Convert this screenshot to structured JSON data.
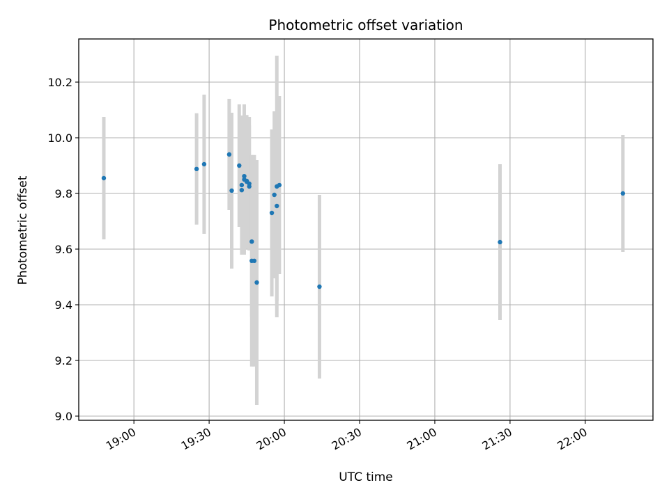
{
  "chart_data": {
    "type": "scatter",
    "title": "Photometric offset variation",
    "xlabel": "UTC time",
    "ylabel": "Photometric offset",
    "x_unit": "UTC time (HH:MM)",
    "xlim": [
      "18:38",
      "22:27"
    ],
    "ylim": [
      8.985,
      10.355
    ],
    "grid": true,
    "x_ticks": [
      "19:00",
      "19:30",
      "20:00",
      "20:30",
      "21:00",
      "21:30",
      "22:00"
    ],
    "y_ticks": [
      9.0,
      9.2,
      9.4,
      9.6,
      9.8,
      10.0,
      10.2
    ],
    "marker_color": "#1f77b4",
    "errorbar_color": "#d3d3d3",
    "series": [
      {
        "points": [
          {
            "x": "18:48",
            "y": 9.855,
            "err": 0.22
          },
          {
            "x": "19:25",
            "y": 9.888,
            "err": 0.2
          },
          {
            "x": "19:28",
            "y": 9.905,
            "err": 0.25
          },
          {
            "x": "19:38",
            "y": 9.94,
            "err": 0.2
          },
          {
            "x": "19:39",
            "y": 9.81,
            "err": 0.28
          },
          {
            "x": "19:42",
            "y": 9.9,
            "err": 0.22
          },
          {
            "x": "19:43",
            "y": 9.812,
            "err": 0.13
          },
          {
            "x": "19:43",
            "y": 9.83,
            "err": 0.25
          },
          {
            "x": "19:44",
            "y": 9.85,
            "err": 0.27
          },
          {
            "x": "19:44",
            "y": 9.862,
            "err": 0.2
          },
          {
            "x": "19:45",
            "y": 9.845,
            "err": 0.23
          },
          {
            "x": "19:45",
            "y": 9.842,
            "err": 0.24
          },
          {
            "x": "19:46",
            "y": 9.835,
            "err": 0.24
          },
          {
            "x": "19:46",
            "y": 9.825,
            "err": 0.22
          },
          {
            "x": "19:47",
            "y": 9.627,
            "err": 0.27
          },
          {
            "x": "19:47",
            "y": 9.558,
            "err": 0.38
          },
          {
            "x": "19:48",
            "y": 9.558,
            "err": 0.38
          },
          {
            "x": "19:49",
            "y": 9.48,
            "err": 0.44
          },
          {
            "x": "19:55",
            "y": 9.73,
            "err": 0.3
          },
          {
            "x": "19:56",
            "y": 9.795,
            "err": 0.3
          },
          {
            "x": "19:57",
            "y": 9.755,
            "err": 0.34
          },
          {
            "x": "19:57",
            "y": 9.825,
            "err": 0.47
          },
          {
            "x": "19:58",
            "y": 9.83,
            "err": 0.32
          },
          {
            "x": "20:14",
            "y": 9.465,
            "err": 0.33
          },
          {
            "x": "21:26",
            "y": 9.625,
            "err": 0.28
          },
          {
            "x": "22:15",
            "y": 9.8,
            "err": 0.21
          }
        ]
      }
    ]
  }
}
